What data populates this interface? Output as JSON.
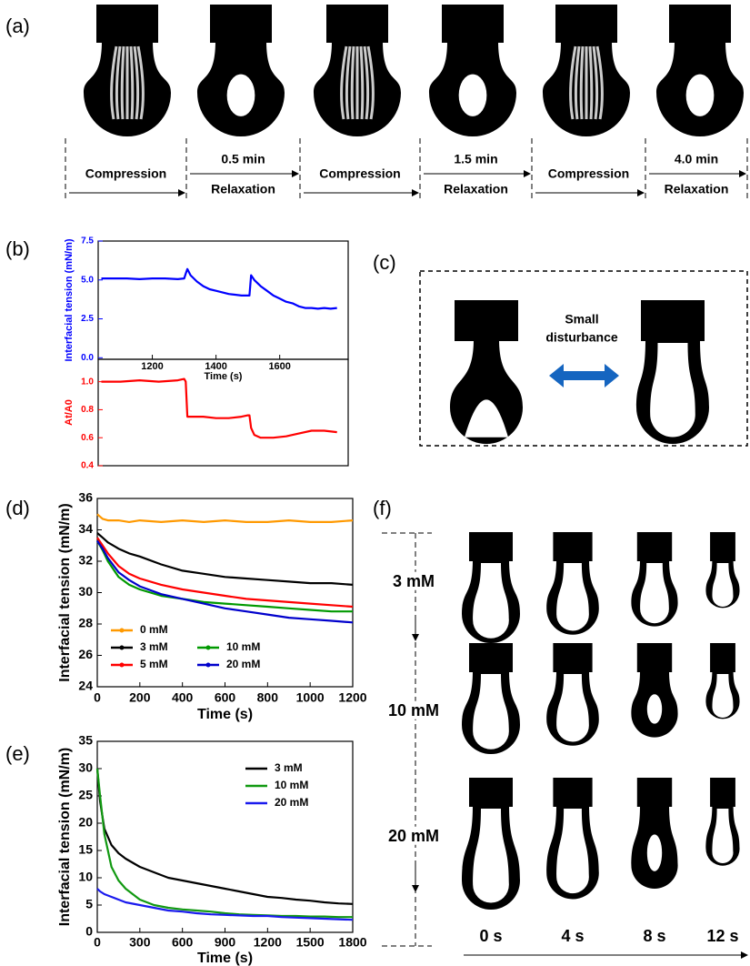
{
  "panel_a": {
    "label": "(a)",
    "steps": [
      {
        "text": "Compression"
      },
      {
        "time": "0.5 min",
        "text": "Relaxation"
      },
      {
        "text": "Compression"
      },
      {
        "time": "1.5 min",
        "text": "Relaxation"
      },
      {
        "text": "Compression"
      },
      {
        "time": "4.0 min",
        "text": "Relaxation"
      }
    ]
  },
  "panel_c": {
    "label": "(c)",
    "text": [
      "Small",
      "disturbance"
    ]
  },
  "panel_f": {
    "label": "(f)",
    "rows": [
      "3 mM",
      "10 mM",
      "20 mM"
    ],
    "columns": [
      "0 s",
      "4 s",
      "8 s",
      "12 s"
    ]
  },
  "chart_data": [
    {
      "type": "line",
      "label": "(b)",
      "ylabel": "Interfacial tension (mN/m)",
      "xlabel": "Time (s)",
      "xlim": [
        1030,
        1815
      ],
      "xticks": [
        1200,
        1400,
        1600
      ],
      "ylim": [
        -0.1,
        7.5
      ],
      "yticks": [
        {
          "value": 0,
          "label": "0.0"
        },
        {
          "value": 2.5,
          "label": "2.5"
        },
        {
          "value": 5,
          "label": "5.0"
        },
        {
          "value": 7.5,
          "label": "7.5"
        }
      ],
      "x": [
        1040,
        1080,
        1120,
        1160,
        1200,
        1240,
        1280,
        1300,
        1305,
        1310,
        1320,
        1340,
        1360,
        1380,
        1400,
        1420,
        1440,
        1460,
        1480,
        1500,
        1505,
        1510,
        1520,
        1540,
        1560,
        1580,
        1600,
        1620,
        1640,
        1660,
        1680,
        1700,
        1720,
        1740,
        1760,
        1780
      ],
      "series": [
        {
          "color": "#0000ff",
          "values": [
            5.1,
            5.1,
            5.1,
            5.05,
            5.1,
            5.1,
            5.05,
            5.1,
            5.4,
            5.7,
            5.3,
            4.9,
            4.6,
            4.4,
            4.3,
            4.2,
            4.1,
            4.05,
            4.0,
            4.0,
            4.0,
            5.3,
            5.0,
            4.6,
            4.3,
            4.0,
            3.8,
            3.6,
            3.5,
            3.3,
            3.2,
            3.2,
            3.15,
            3.2,
            3.15,
            3.2
          ]
        }
      ]
    },
    {
      "type": "line",
      "ylabel": "At/A0",
      "xlim": [
        1030,
        1815
      ],
      "ylim": [
        0.4,
        1.16
      ],
      "yticks": [
        0.4,
        0.6,
        0.8,
        {
          "value": 1,
          "label": "1.0"
        }
      ],
      "x": [
        1040,
        1100,
        1160,
        1220,
        1280,
        1300,
        1305,
        1310,
        1320,
        1360,
        1400,
        1440,
        1480,
        1500,
        1505,
        1510,
        1520,
        1540,
        1580,
        1620,
        1660,
        1700,
        1740,
        1780
      ],
      "series": [
        {
          "color": "#ff0000",
          "values": [
            1.0,
            1.0,
            1.01,
            1.0,
            1.01,
            1.02,
            1.0,
            0.75,
            0.75,
            0.75,
            0.74,
            0.74,
            0.75,
            0.76,
            0.76,
            0.67,
            0.62,
            0.6,
            0.6,
            0.61,
            0.63,
            0.65,
            0.65,
            0.64
          ]
        }
      ]
    },
    {
      "type": "line",
      "label": "(d)",
      "ylabel": "Interfacial tension (mN/m)",
      "xlabel": "Time (s)",
      "xlim": [
        0,
        1200
      ],
      "xticks": [
        0,
        200,
        400,
        600,
        800,
        1000,
        1200
      ],
      "ylim": [
        24,
        36
      ],
      "yticks": [
        24,
        26,
        28,
        30,
        32,
        34,
        36
      ],
      "legend": "lower left",
      "x": [
        0,
        25,
        50,
        100,
        150,
        200,
        300,
        400,
        500,
        600,
        700,
        800,
        900,
        1000,
        1100,
        1200
      ],
      "series": [
        {
          "name": "0 mM",
          "color": "#ff9900",
          "values": [
            35.0,
            34.7,
            34.6,
            34.6,
            34.5,
            34.6,
            34.5,
            34.6,
            34.5,
            34.6,
            34.5,
            34.5,
            34.6,
            34.5,
            34.5,
            34.6
          ]
        },
        {
          "name": "3 mM",
          "color": "#000000",
          "values": [
            33.8,
            33.5,
            33.2,
            32.8,
            32.5,
            32.3,
            31.8,
            31.4,
            31.2,
            31.0,
            30.9,
            30.8,
            30.7,
            30.6,
            30.6,
            30.5
          ]
        },
        {
          "name": "5 mM",
          "color": "#ff0000",
          "values": [
            33.5,
            33.0,
            32.5,
            31.7,
            31.2,
            30.9,
            30.5,
            30.2,
            30.0,
            29.8,
            29.6,
            29.5,
            29.4,
            29.3,
            29.2,
            29.1
          ]
        },
        {
          "name": "10 mM",
          "color": "#009900",
          "values": [
            33.3,
            32.7,
            32.0,
            31.0,
            30.5,
            30.2,
            29.8,
            29.6,
            29.4,
            29.3,
            29.2,
            29.1,
            29.0,
            28.9,
            28.8,
            28.8
          ]
        },
        {
          "name": "20 mM",
          "color": "#0000cc",
          "values": [
            33.3,
            32.8,
            32.2,
            31.3,
            30.8,
            30.4,
            29.9,
            29.6,
            29.3,
            29.0,
            28.8,
            28.6,
            28.4,
            28.3,
            28.2,
            28.1
          ]
        }
      ]
    },
    {
      "type": "line",
      "label": "(e)",
      "ylabel": "Interfacial tension (mN/m)",
      "xlabel": "Time (s)",
      "xlim": [
        0,
        1800
      ],
      "xticks": [
        0,
        300,
        600,
        900,
        1200,
        1500,
        1800
      ],
      "ylim": [
        0,
        35
      ],
      "yticks": [
        0,
        5,
        10,
        15,
        20,
        25,
        30,
        35
      ],
      "legend": "upper right",
      "x": [
        0,
        20,
        50,
        100,
        150,
        200,
        300,
        400,
        500,
        600,
        700,
        800,
        900,
        1000,
        1100,
        1200,
        1300,
        1400,
        1500,
        1600,
        1700,
        1800
      ],
      "series": [
        {
          "name": "3 mM",
          "color": "#000000",
          "values": [
            30,
            24,
            19,
            16,
            14.5,
            13.5,
            12,
            11,
            10,
            9.5,
            9,
            8.5,
            8,
            7.5,
            7,
            6.5,
            6.3,
            6,
            5.8,
            5.5,
            5.3,
            5.2
          ]
        },
        {
          "name": "10 mM",
          "color": "#119911",
          "values": [
            30,
            25,
            18,
            12,
            9.5,
            8,
            6,
            5,
            4.5,
            4.2,
            4,
            3.8,
            3.5,
            3.3,
            3.2,
            3.1,
            3,
            3,
            2.9,
            2.9,
            2.8,
            2.8
          ]
        },
        {
          "name": "20 mM",
          "color": "#1a1aee",
          "values": [
            8,
            7.5,
            7,
            6.5,
            6,
            5.5,
            5,
            4.5,
            4,
            3.8,
            3.5,
            3.3,
            3.2,
            3.1,
            3,
            3,
            2.8,
            2.7,
            2.6,
            2.5,
            2.4,
            2.3
          ]
        }
      ]
    }
  ]
}
